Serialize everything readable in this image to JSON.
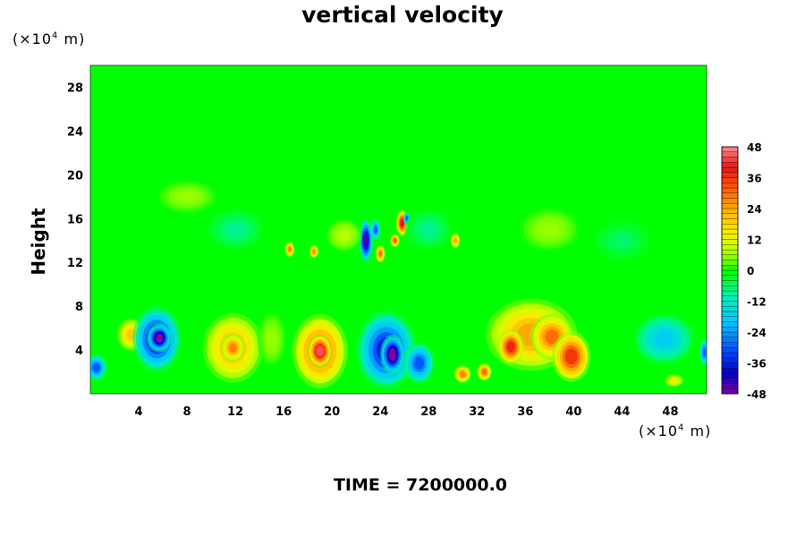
{
  "chart_data": {
    "type": "heatmap",
    "title": "vertical velocity",
    "ylabel": "Height",
    "y_unit": "(×10",
    "y_unit_exp": "4",
    "y_unit_tail": " m)",
    "x_unit": "(×10",
    "x_unit_exp": "4",
    "x_unit_tail": " m)",
    "footer": "TIME = 7200000.0",
    "xlim": [
      0,
      51
    ],
    "ylim": [
      0,
      30
    ],
    "x_ticks": [
      "4",
      "8",
      "12",
      "16",
      "20",
      "24",
      "28",
      "32",
      "36",
      "40",
      "44",
      "48"
    ],
    "y_ticks": [
      "4",
      "8",
      "12",
      "16",
      "20",
      "24",
      "28"
    ],
    "colorbar": {
      "range": [
        -48,
        48
      ],
      "tick_labels": [
        "48",
        "36",
        "24",
        "12",
        "0",
        "-12",
        "-24",
        "-36",
        "-48"
      ],
      "tick_values": [
        48,
        36,
        24,
        12,
        0,
        -12,
        -24,
        -36,
        -48
      ]
    },
    "background_value": 0,
    "features": [
      {
        "x": 0.5,
        "y": 2.4,
        "rx": 0.9,
        "ry": 1.2,
        "value": -30
      },
      {
        "x": 3.4,
        "y": 5.4,
        "rx": 1.2,
        "ry": 1.5,
        "value": 20
      },
      {
        "x": 5.5,
        "y": 5.0,
        "rx": 2.0,
        "ry": 3.0,
        "value": -38
      },
      {
        "x": 5.7,
        "y": 5.1,
        "rx": 1.0,
        "ry": 1.3,
        "value": -48
      },
      {
        "x": 11.8,
        "y": 4.2,
        "rx": 2.5,
        "ry": 3.2,
        "value": 22
      },
      {
        "x": 11.8,
        "y": 4.2,
        "rx": 1.0,
        "ry": 1.3,
        "value": 28
      },
      {
        "x": 15.0,
        "y": 5.0,
        "rx": 1.2,
        "ry": 2.5,
        "value": 6
      },
      {
        "x": 19.0,
        "y": 3.9,
        "rx": 2.3,
        "ry": 3.4,
        "value": 30
      },
      {
        "x": 19.0,
        "y": 3.9,
        "rx": 1.0,
        "ry": 1.5,
        "value": 44
      },
      {
        "x": 24.5,
        "y": 4.0,
        "rx": 2.5,
        "ry": 3.6,
        "value": -36
      },
      {
        "x": 25.0,
        "y": 3.6,
        "rx": 1.0,
        "ry": 1.8,
        "value": -48
      },
      {
        "x": 27.2,
        "y": 2.8,
        "rx": 1.3,
        "ry": 1.9,
        "value": -30
      },
      {
        "x": 30.8,
        "y": 1.8,
        "rx": 0.7,
        "ry": 0.8,
        "value": 28
      },
      {
        "x": 32.6,
        "y": 2.0,
        "rx": 0.6,
        "ry": 0.8,
        "value": 30
      },
      {
        "x": 36.5,
        "y": 5.4,
        "rx": 3.8,
        "ry": 3.3,
        "value": 24
      },
      {
        "x": 34.8,
        "y": 4.3,
        "rx": 1.1,
        "ry": 1.6,
        "value": 38
      },
      {
        "x": 38.2,
        "y": 5.2,
        "rx": 1.8,
        "ry": 2.1,
        "value": 30
      },
      {
        "x": 39.8,
        "y": 3.4,
        "rx": 1.6,
        "ry": 2.3,
        "value": 36
      },
      {
        "x": 47.5,
        "y": 5.0,
        "rx": 2.6,
        "ry": 2.4,
        "value": -18
      },
      {
        "x": 48.3,
        "y": 1.2,
        "rx": 0.8,
        "ry": 0.6,
        "value": 14
      },
      {
        "x": 50.8,
        "y": 3.8,
        "rx": 0.4,
        "ry": 1.2,
        "value": -30
      },
      {
        "x": 22.8,
        "y": 14.0,
        "rx": 0.6,
        "ry": 2.0,
        "value": -44
      },
      {
        "x": 23.6,
        "y": 15.0,
        "rx": 0.4,
        "ry": 1.0,
        "value": -30
      },
      {
        "x": 24.0,
        "y": 12.8,
        "rx": 0.4,
        "ry": 0.8,
        "value": 30
      },
      {
        "x": 25.8,
        "y": 15.6,
        "rx": 0.5,
        "ry": 1.2,
        "value": 40
      },
      {
        "x": 25.2,
        "y": 14.0,
        "rx": 0.4,
        "ry": 0.6,
        "value": 32
      },
      {
        "x": 26.2,
        "y": 16.0,
        "rx": 0.3,
        "ry": 0.6,
        "value": -30
      },
      {
        "x": 16.5,
        "y": 13.2,
        "rx": 0.4,
        "ry": 0.7,
        "value": 28
      },
      {
        "x": 18.5,
        "y": 13.0,
        "rx": 0.4,
        "ry": 0.6,
        "value": 26
      },
      {
        "x": 30.2,
        "y": 14.0,
        "rx": 0.4,
        "ry": 0.7,
        "value": 24
      },
      {
        "x": 21.0,
        "y": 14.5,
        "rx": 1.5,
        "ry": 1.5,
        "value": 8
      },
      {
        "x": 28.0,
        "y": 15.0,
        "rx": 2.0,
        "ry": 2.0,
        "value": -8
      },
      {
        "x": 12.0,
        "y": 15.0,
        "rx": 2.5,
        "ry": 2.0,
        "value": -8
      },
      {
        "x": 38.0,
        "y": 15.0,
        "rx": 2.5,
        "ry": 2.0,
        "value": 6
      },
      {
        "x": 8.0,
        "y": 18.0,
        "rx": 2.5,
        "ry": 1.5,
        "value": 6
      },
      {
        "x": 44.0,
        "y": 14.0,
        "rx": 2.5,
        "ry": 2.0,
        "value": -6
      }
    ]
  }
}
